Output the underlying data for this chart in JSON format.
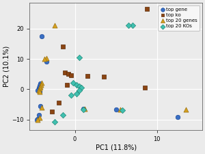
{
  "title": "",
  "xlabel": "PC1 (11.8%)",
  "ylabel": "PC2 (10.1%)",
  "xlim": [
    -5.5,
    15.5
  ],
  "ylim": [
    -13.5,
    28.5
  ],
  "xticks": [
    0,
    10
  ],
  "yticks": [
    -10,
    0,
    10,
    20
  ],
  "background_color": "#ebebeb",
  "grid_color": "#ffffff",
  "top_gene": {
    "color": "#3a6fc4",
    "marker": "o",
    "label": "top gene",
    "points": [
      [
        -4.0,
        17.5
      ],
      [
        -3.5,
        9.0
      ],
      [
        -4.2,
        1.8
      ],
      [
        -4.3,
        1.2
      ],
      [
        -4.4,
        0.5
      ],
      [
        -4.4,
        0.0
      ],
      [
        -4.5,
        -0.5
      ],
      [
        -4.3,
        -0.8
      ],
      [
        -4.2,
        -5.5
      ],
      [
        -4.4,
        -8.5
      ],
      [
        -4.5,
        -9.8
      ],
      [
        -4.6,
        -10.2
      ],
      [
        1.0,
        -6.5
      ],
      [
        5.0,
        -6.8
      ],
      [
        12.5,
        -9.2
      ]
    ]
  },
  "top_ko": {
    "color": "#8b4513",
    "marker": "s",
    "label": "top ko",
    "points": [
      [
        -1.5,
        14.0
      ],
      [
        -1.2,
        5.5
      ],
      [
        -0.8,
        5.0
      ],
      [
        -0.5,
        4.6
      ],
      [
        1.5,
        4.3
      ],
      [
        3.5,
        4.2
      ],
      [
        -1.0,
        1.5
      ],
      [
        -2.0,
        -4.5
      ],
      [
        -2.8,
        -7.5
      ],
      [
        8.5,
        0.5
      ],
      [
        8.8,
        26.5
      ]
    ]
  },
  "top_20_genes": {
    "color": "#d4a020",
    "marker": "^",
    "label": "top 20 genes",
    "points": [
      [
        -2.5,
        21.0
      ],
      [
        -3.5,
        10.2
      ],
      [
        -3.7,
        10.0
      ],
      [
        -4.0,
        2.0
      ],
      [
        -4.1,
        1.5
      ],
      [
        -4.2,
        0.8
      ],
      [
        -4.3,
        0.3
      ],
      [
        -4.4,
        -0.3
      ],
      [
        -4.3,
        -0.8
      ],
      [
        -4.0,
        -6.0
      ],
      [
        -4.3,
        -9.5
      ],
      [
        -4.5,
        -10.0
      ],
      [
        1.2,
        -6.5
      ],
      [
        5.5,
        -6.8
      ],
      [
        13.5,
        -6.8
      ]
    ]
  },
  "top_20_kos": {
    "color": "#40c0b0",
    "marker": "D",
    "label": "top 20 KOs",
    "points": [
      [
        7.0,
        21.0
      ],
      [
        0.5,
        10.5
      ],
      [
        -0.2,
        2.0
      ],
      [
        0.2,
        1.5
      ],
      [
        0.5,
        1.0
      ],
      [
        0.8,
        0.5
      ],
      [
        0.5,
        -0.5
      ],
      [
        0.2,
        -1.5
      ],
      [
        -0.5,
        -2.0
      ],
      [
        -1.5,
        -8.5
      ],
      [
        -2.5,
        -10.8
      ],
      [
        1.0,
        -6.8
      ],
      [
        5.8,
        -7.0
      ],
      [
        6.5,
        21.0
      ]
    ]
  },
  "figsize": [
    3.0,
    2.25
  ],
  "dpi": 100
}
